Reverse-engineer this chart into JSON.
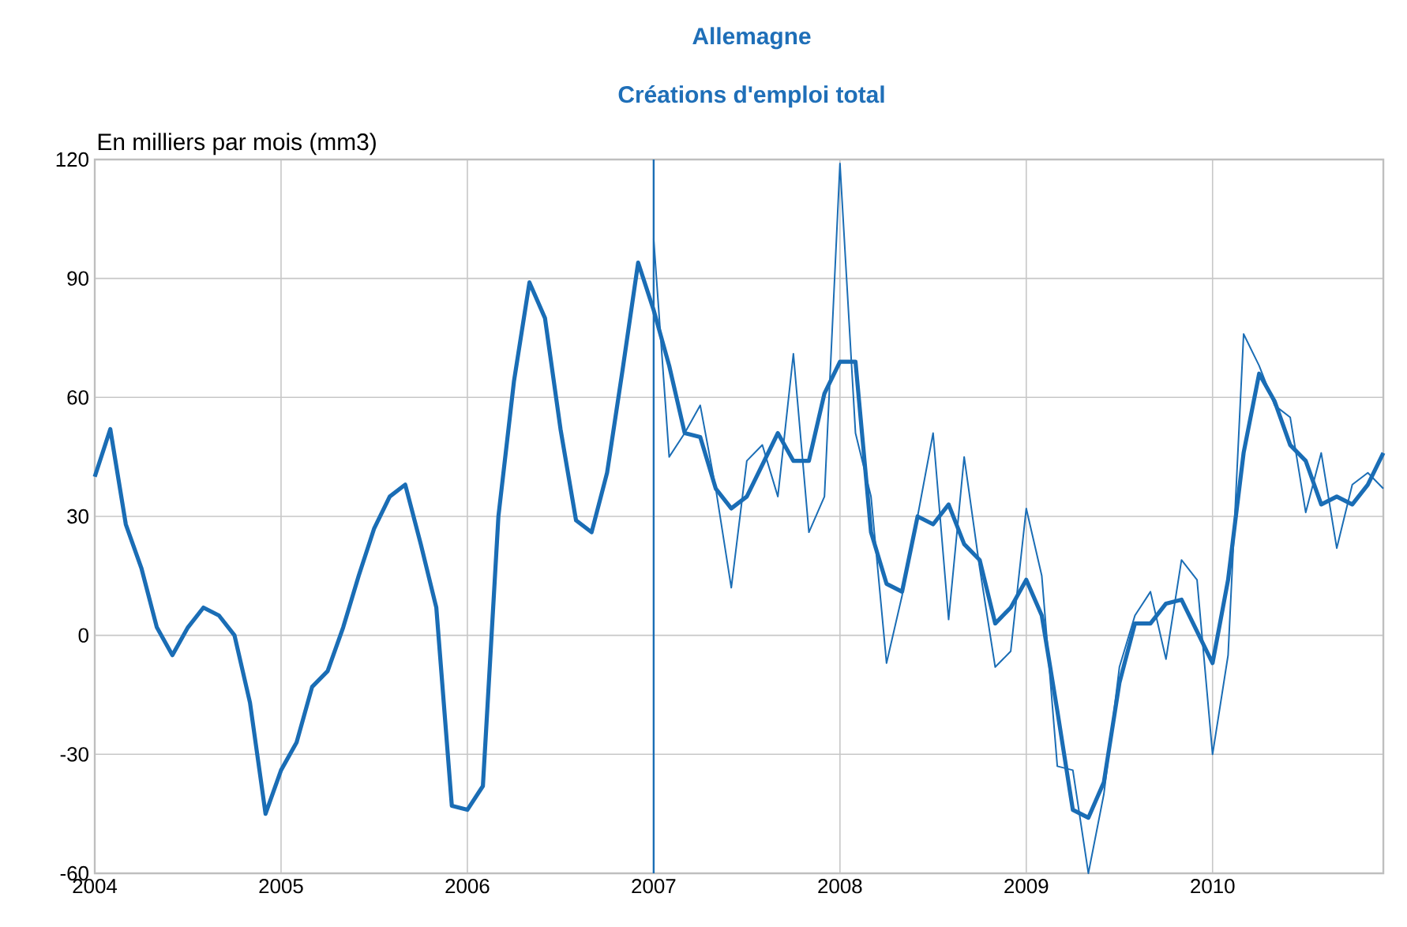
{
  "chart_data": {
    "type": "line",
    "title": "Allemagne",
    "subtitle": "Créations d'emploi total",
    "ylabel": "En milliers par mois (mm3)",
    "x": [
      "2004-01",
      "2004-02",
      "2004-03",
      "2004-04",
      "2004-05",
      "2004-06",
      "2004-07",
      "2004-08",
      "2004-09",
      "2004-10",
      "2004-11",
      "2004-12",
      "2005-01",
      "2005-02",
      "2005-03",
      "2005-04",
      "2005-05",
      "2005-06",
      "2005-07",
      "2005-08",
      "2005-09",
      "2005-10",
      "2005-11",
      "2005-12",
      "2006-01",
      "2006-02",
      "2006-03",
      "2006-04",
      "2006-05",
      "2006-06",
      "2006-07",
      "2006-08",
      "2006-09",
      "2006-10",
      "2006-11",
      "2006-12",
      "2007-01",
      "2007-02",
      "2007-03",
      "2007-04",
      "2007-05",
      "2007-06",
      "2007-07",
      "2007-08",
      "2007-09",
      "2007-10",
      "2007-11",
      "2007-12",
      "2008-01",
      "2008-02",
      "2008-03",
      "2008-04",
      "2008-05",
      "2008-06",
      "2008-07",
      "2008-08",
      "2008-09",
      "2008-10",
      "2008-11",
      "2008-12",
      "2009-01",
      "2009-02",
      "2009-03",
      "2009-04",
      "2009-05",
      "2009-06",
      "2009-07",
      "2009-08",
      "2009-09",
      "2009-10",
      "2009-11",
      "2009-12",
      "2010-01",
      "2010-02",
      "2010-03",
      "2010-04",
      "2010-05",
      "2010-06",
      "2010-07",
      "2010-08",
      "2010-09",
      "2010-10",
      "2010-11",
      "2010-12"
    ],
    "series": [
      {
        "color": "#1a6db5",
        "values": [
          40,
          52,
          28,
          17,
          2,
          -5,
          2,
          7,
          5,
          0,
          -17,
          -45,
          -34,
          -27,
          -13,
          -9,
          2,
          15,
          27,
          35,
          38,
          23,
          7,
          -43,
          -44,
          -38,
          30,
          64,
          89,
          80,
          52,
          29,
          26,
          41,
          67,
          94,
          82,
          68,
          51,
          50,
          37,
          32,
          35,
          43,
          51,
          44,
          44,
          61,
          69,
          69,
          26,
          13,
          11,
          30,
          28,
          33,
          23,
          19,
          3,
          7,
          14,
          5,
          -19,
          -44,
          -46,
          -37,
          -12,
          3,
          3,
          8,
          9,
          1,
          -7,
          14,
          46,
          66,
          59,
          48,
          44,
          33,
          35,
          33,
          38,
          46
        ]
      },
      {
        "color": "#1a6db5",
        "values": [
          null,
          null,
          null,
          null,
          null,
          null,
          null,
          null,
          null,
          null,
          null,
          null,
          null,
          null,
          null,
          null,
          null,
          null,
          null,
          null,
          null,
          null,
          null,
          null,
          null,
          null,
          null,
          null,
          null,
          null,
          null,
          null,
          null,
          null,
          null,
          null,
          100,
          45,
          51,
          58,
          37,
          12,
          44,
          48,
          35,
          71,
          26,
          35,
          119,
          51,
          35,
          -7,
          10,
          30,
          51,
          4,
          45,
          17,
          -8,
          -4,
          32,
          15,
          -33,
          -34,
          -60,
          -40,
          -8,
          5,
          11,
          -6,
          19,
          14,
          -30,
          -5,
          76,
          68,
          58,
          55,
          31,
          46,
          22,
          38,
          41,
          37
        ]
      }
    ],
    "xlim": [
      "2004-01",
      "2010-12"
    ],
    "xticks": [
      "2004",
      "2005",
      "2006",
      "2007",
      "2008",
      "2009",
      "2010"
    ],
    "ylim": [
      -60,
      120
    ],
    "yticks": [
      -60,
      -30,
      0,
      30,
      60,
      90,
      120
    ],
    "ref_lines": [
      {
        "axis": "x",
        "value": "2007-01",
        "color": "#1a6db5"
      }
    ],
    "grid": true,
    "marker": "none"
  }
}
